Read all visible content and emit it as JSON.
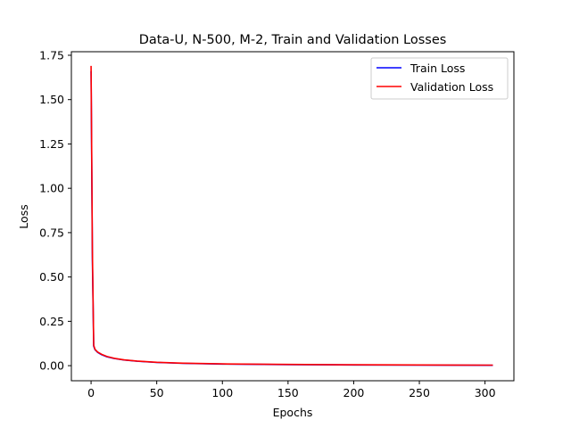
{
  "chart_data": {
    "type": "line",
    "title": "Data-U, N-500, M-2, Train and Validation Losses",
    "xlabel": "Epochs",
    "ylabel": "Loss",
    "xlim": [
      -15,
      322
    ],
    "ylim": [
      -0.085,
      1.77
    ],
    "xticks": [
      0,
      50,
      100,
      150,
      200,
      250,
      300
    ],
    "xtick_labels": [
      "0",
      "50",
      "100",
      "150",
      "200",
      "250",
      "300"
    ],
    "yticks": [
      0.0,
      0.25,
      0.5,
      0.75,
      1.0,
      1.25,
      1.5,
      1.75
    ],
    "ytick_labels": [
      "0.00",
      "0.25",
      "0.50",
      "0.75",
      "1.00",
      "1.25",
      "1.50",
      "1.75"
    ],
    "grid": false,
    "legend_position": "top-right",
    "series": [
      {
        "name": "Train Loss",
        "color": "#0000ff",
        "x": [
          0,
          1,
          2,
          3,
          5,
          8,
          12,
          18,
          25,
          35,
          50,
          70,
          100,
          150,
          200,
          250,
          306
        ],
        "values": [
          1.66,
          0.6,
          0.11,
          0.09,
          0.075,
          0.062,
          0.05,
          0.04,
          0.032,
          0.025,
          0.018,
          0.013,
          0.009,
          0.006,
          0.004,
          0.003,
          0.002
        ]
      },
      {
        "name": "Validation Loss",
        "color": "#ff0000",
        "x": [
          0,
          1,
          2,
          3,
          5,
          8,
          12,
          18,
          25,
          35,
          50,
          70,
          100,
          150,
          200,
          250,
          306
        ],
        "values": [
          1.69,
          0.65,
          0.115,
          0.092,
          0.077,
          0.064,
          0.052,
          0.041,
          0.033,
          0.026,
          0.019,
          0.014,
          0.01,
          0.007,
          0.005,
          0.004,
          0.003
        ]
      }
    ]
  }
}
